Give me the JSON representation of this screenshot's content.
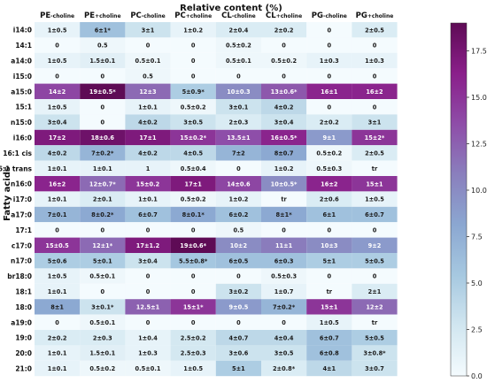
{
  "chart_data": {
    "type": "heatmap",
    "title": "Relative content (%)",
    "ylabel": "Fatty acids",
    "columns": [
      {
        "main": "PE",
        "sub": "-choline"
      },
      {
        "main": "PE",
        "sub": "+choline"
      },
      {
        "main": "PC",
        "sub": "-choline"
      },
      {
        "main": "PC",
        "sub": "+choline"
      },
      {
        "main": "CL",
        "sub": "-choline"
      },
      {
        "main": "CL",
        "sub": "+choline"
      },
      {
        "main": "PG",
        "sub": "-choline"
      },
      {
        "main": "PG",
        "sub": "+choline"
      }
    ],
    "rows": [
      {
        "label": "i14:0",
        "values": [
          1,
          6,
          3,
          1,
          2,
          2,
          0,
          2
        ],
        "text": [
          "1±0.5",
          "6±1*",
          "3±1",
          "1±0.2",
          "2±0.4",
          "2±0.2",
          "0",
          "2±0.5"
        ]
      },
      {
        "label": "14:1",
        "values": [
          0,
          0.5,
          0,
          0,
          0.5,
          0,
          0,
          0
        ],
        "text": [
          "0",
          "0.5",
          "0",
          "0",
          "0.5±0.2",
          "0",
          "0",
          "0"
        ]
      },
      {
        "label": "a14:0",
        "values": [
          1,
          1.5,
          0.5,
          0,
          0.5,
          0.5,
          1,
          1
        ],
        "text": [
          "1±0.5",
          "1.5±0.1",
          "0.5±0.1",
          "0",
          "0.5±0.1",
          "0.5±0.2",
          "1±0.3",
          "1±0.3"
        ]
      },
      {
        "label": "i15:0",
        "values": [
          0,
          0,
          0.5,
          0,
          0,
          0,
          0,
          0
        ],
        "text": [
          "0",
          "0",
          "0.5",
          "0",
          "0",
          "0",
          "0",
          "0"
        ]
      },
      {
        "label": "a15:0",
        "values": [
          14,
          19,
          12,
          5,
          10,
          13,
          16,
          16
        ],
        "text": [
          "14±2",
          "19±0.5*",
          "12±3",
          "5±0.9*",
          "10±0.3",
          "13±0.6*",
          "16±1",
          "16±2"
        ]
      },
      {
        "label": "15:1",
        "values": [
          1,
          0,
          1,
          0.5,
          3,
          4,
          0,
          0
        ],
        "text": [
          "1±0.5",
          "0",
          "1±0.1",
          "0.5±0.2",
          "3±0.1",
          "4±0.2",
          "0",
          "0"
        ]
      },
      {
        "label": "n15:0",
        "values": [
          3,
          0,
          4,
          3,
          2,
          3,
          2,
          3
        ],
        "text": [
          "3±0.4",
          "0",
          "4±0.2",
          "3±0.5",
          "2±0.3",
          "3±0.4",
          "2±0.2",
          "3±1"
        ]
      },
      {
        "label": "i16:0",
        "values": [
          17,
          18,
          17,
          15,
          13.5,
          16,
          9,
          15
        ],
        "text": [
          "17±2",
          "18±0.6",
          "17±1",
          "15±0.2*",
          "13.5±1",
          "16±0.5*",
          "9±1",
          "15±2*"
        ]
      },
      {
        "label": "16:1 cis",
        "values": [
          4,
          7,
          4,
          4,
          7,
          8,
          0.5,
          2
        ],
        "text": [
          "4±0.2",
          "7±0.2*",
          "4±0.2",
          "4±0.5",
          "7±2",
          "8±0.7",
          "0.5±0.2",
          "2±0.5"
        ]
      },
      {
        "label": "16:1 trans",
        "values": [
          1,
          1,
          1,
          0.5,
          0,
          1,
          0.5,
          0
        ],
        "text": [
          "1±0.1",
          "1±0.1",
          "1",
          "0.5±0.4",
          "0",
          "1±0.2",
          "0.5±0.3",
          "tr"
        ]
      },
      {
        "label": "n16:0",
        "values": [
          16,
          12,
          15,
          17,
          14,
          10,
          16,
          15
        ],
        "text": [
          "16±2",
          "12±0.7*",
          "15±0.2",
          "17±1",
          "14±0.6",
          "10±0.5*",
          "16±2",
          "15±1"
        ]
      },
      {
        "label": "i17:0",
        "values": [
          1,
          2,
          1,
          0.5,
          1,
          0,
          2,
          1
        ],
        "text": [
          "1±0.1",
          "2±0.1",
          "1±0.1",
          "0.5±0.2",
          "1±0.2",
          "tr",
          "2±0.6",
          "1±0.5"
        ]
      },
      {
        "label": "a17:0",
        "values": [
          7,
          8,
          6,
          8,
          6,
          8,
          6,
          6
        ],
        "text": [
          "7±0.1",
          "8±0.2*",
          "6±0.7",
          "8±0.1*",
          "6±0.2",
          "8±1*",
          "6±1",
          "6±0.7"
        ]
      },
      {
        "label": "17:1",
        "values": [
          0,
          0,
          0,
          0,
          0.5,
          0,
          0,
          0
        ],
        "text": [
          "0",
          "0",
          "0",
          "0",
          "0.5",
          "0",
          "0",
          "0"
        ]
      },
      {
        "label": "c17:0",
        "values": [
          15,
          12,
          17,
          19,
          10,
          11,
          10,
          9
        ],
        "text": [
          "15±0.5",
          "12±1*",
          "17±1.2",
          "19±0.6*",
          "10±2",
          "11±1",
          "10±3",
          "9±2"
        ]
      },
      {
        "label": "n17:0",
        "values": [
          5,
          5,
          3,
          5.5,
          6,
          6,
          5,
          5
        ],
        "text": [
          "5±0.6",
          "5±0.1",
          "3±0.4",
          "5.5±0.8*",
          "6±0.5",
          "6±0.3",
          "5±1",
          "5±0.5"
        ]
      },
      {
        "label": "br18:0",
        "values": [
          1,
          0.5,
          0,
          0,
          0,
          0.5,
          0,
          0
        ],
        "text": [
          "1±0.5",
          "0.5±0.1",
          "0",
          "0",
          "0",
          "0.5±0.3",
          "0",
          "0"
        ]
      },
      {
        "label": "18:1",
        "values": [
          1,
          0,
          0,
          0,
          3,
          1,
          0,
          2
        ],
        "text": [
          "1±0.1",
          "0",
          "0",
          "0",
          "3±0.2",
          "1±0.7",
          "tr",
          "2±1"
        ]
      },
      {
        "label": "18:0",
        "values": [
          8,
          3,
          12.5,
          15,
          9,
          7,
          15,
          12
        ],
        "text": [
          "8±1",
          "3±0.1*",
          "12.5±1",
          "15±1*",
          "9±0.5",
          "7±0.2*",
          "15±1",
          "12±2"
        ]
      },
      {
        "label": "a19:0",
        "values": [
          0,
          0.5,
          0,
          0,
          0,
          0,
          1,
          0
        ],
        "text": [
          "0",
          "0.5±0.1",
          "0",
          "0",
          "0",
          "0",
          "1±0.5",
          "tr"
        ]
      },
      {
        "label": "19:0",
        "values": [
          2,
          2,
          1,
          2.5,
          4,
          4,
          6,
          5
        ],
        "text": [
          "2±0.2",
          "2±0.3",
          "1±0.4",
          "2.5±0.2",
          "4±0.7",
          "4±0.4",
          "6±0.7",
          "5±0.5"
        ]
      },
      {
        "label": "20:0",
        "values": [
          1,
          1.5,
          1,
          2.5,
          3,
          3,
          6,
          3
        ],
        "text": [
          "1±0.1",
          "1.5±0.1",
          "1±0.3",
          "2.5±0.3",
          "3±0.6",
          "3±0.5",
          "6±0.8",
          "3±0.8*"
        ]
      },
      {
        "label": "21:0",
        "values": [
          1,
          0.5,
          0.5,
          1,
          5,
          2,
          4,
          3
        ],
        "text": [
          "1±0.1",
          "0.5±0.2",
          "0.5±0.1",
          "1±0.5",
          "5±1",
          "2±0.8*",
          "4±1",
          "3±0.7"
        ]
      }
    ],
    "colorbar": {
      "min": 0,
      "max": 19,
      "ticks": [
        "0.0",
        "2.5",
        "5.0",
        "7.5",
        "10.0",
        "12.5",
        "15.0",
        "17.5"
      ],
      "colors": [
        "#f4fbfe",
        "#d1e6f0",
        "#a6c8e0",
        "#8ba7d1",
        "#8a7fbd",
        "#8e4da8",
        "#8a1f8a",
        "#5e0b55"
      ]
    },
    "grid": false,
    "legend": "colorbar-right"
  }
}
